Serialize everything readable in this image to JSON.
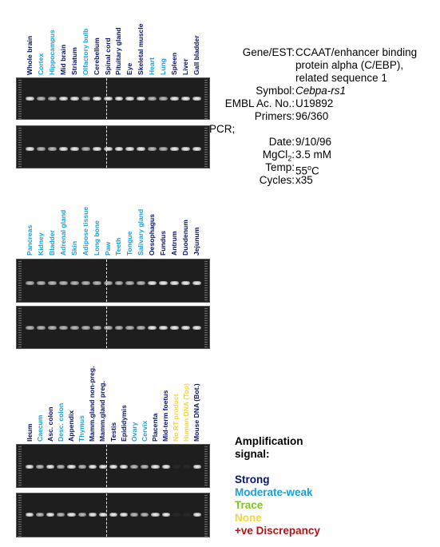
{
  "colors": {
    "strong": "#0a1466",
    "moderate": "#1aa0d8",
    "trace": "#7ec41e",
    "none": "#f2d540",
    "discrepancy": "#b01616"
  },
  "panels": [
    {
      "lanes": [
        {
          "label": "Whole brain",
          "level": "strong"
        },
        {
          "label": "Cortex",
          "level": "moderate"
        },
        {
          "label": "Hippocampus",
          "level": "moderate"
        },
        {
          "label": "Mid brain",
          "level": "strong"
        },
        {
          "label": "Striatum",
          "level": "strong"
        },
        {
          "label": "Olfactory bulb",
          "level": "moderate"
        },
        {
          "label": "Cerebellum",
          "level": "strong"
        },
        {
          "label": "Spinal cord",
          "level": "strong"
        },
        {
          "label": "Pituitary gland",
          "level": "strong"
        },
        {
          "label": "Eye",
          "level": "strong"
        },
        {
          "label": "Skeletal muscle",
          "level": "strong"
        },
        {
          "label": "Heart",
          "level": "moderate"
        },
        {
          "label": "Lung",
          "level": "moderate"
        },
        {
          "label": "Spleen",
          "level": "strong"
        },
        {
          "label": "Liver",
          "level": "strong"
        },
        {
          "label": "Gall bladder",
          "level": "strong"
        }
      ]
    },
    {
      "lanes": [
        {
          "label": "Pancreas",
          "level": "moderate"
        },
        {
          "label": "Kidney",
          "level": "moderate"
        },
        {
          "label": "Bladder",
          "level": "moderate"
        },
        {
          "label": "Adrenal gland",
          "level": "moderate"
        },
        {
          "label": "Skin",
          "level": "moderate"
        },
        {
          "label": "Adipose tissue",
          "level": "moderate"
        },
        {
          "label": "Long bone",
          "level": "moderate"
        },
        {
          "label": "Paw",
          "level": "moderate"
        },
        {
          "label": "Teeth",
          "level": "moderate"
        },
        {
          "label": "Tongue",
          "level": "moderate"
        },
        {
          "label": "Salivary gland",
          "level": "moderate"
        },
        {
          "label": "Oesophagus",
          "level": "strong"
        },
        {
          "label": "Fundus",
          "level": "strong"
        },
        {
          "label": "Antrum",
          "level": "strong"
        },
        {
          "label": "Duodenum",
          "level": "strong"
        },
        {
          "label": "Jejunum",
          "level": "strong"
        }
      ]
    },
    {
      "lanes": [
        {
          "label": "Ileum",
          "level": "strong"
        },
        {
          "label": "Caecum",
          "level": "moderate"
        },
        {
          "label": "Asc. colon",
          "level": "strong"
        },
        {
          "label": "Desc. colon",
          "level": "moderate"
        },
        {
          "label": "Appendix",
          "level": "strong"
        },
        {
          "label": "Thymus",
          "level": "moderate"
        },
        {
          "label": "Mamm.gland non-preg.",
          "level": "strong"
        },
        {
          "label": "Mamm.gland preg.",
          "level": "strong"
        },
        {
          "label": "Testis",
          "level": "strong"
        },
        {
          "label": "Epididymis",
          "level": "strong"
        },
        {
          "label": "Ovary",
          "level": "moderate"
        },
        {
          "label": "Cervix",
          "level": "moderate"
        },
        {
          "label": "Placenta",
          "level": "strong"
        },
        {
          "label": "Mid-term foetus",
          "level": "strong"
        },
        {
          "label": "No RT product",
          "level": "none"
        },
        {
          "label": "Human DNA (Top)",
          "level": "none"
        },
        {
          "label": "Mouse DNA (Bot.)",
          "level": "strong"
        }
      ]
    }
  ],
  "gene_info": {
    "gene_key": "Gene/EST:",
    "gene_value": "CCAAT/enhancer binding protein alpha (C/EBP), related sequence 1",
    "symbol_key": "Symbol:",
    "symbol_value": "Cebpa-rs1",
    "embl_key": "EMBL Ac. No.:",
    "embl_value": "U19892",
    "primers_key": "Primers:",
    "primers_value": "96/360",
    "pcr_label": "PCR;",
    "date_key": "Date:",
    "date_value": "9/10/96",
    "mgcl2_key_prefix": "MgCl",
    "mgcl2_key_sub": "2",
    "mgcl2_key_suffix": ":",
    "mgcl2_value": "3.5 mM",
    "temp_key": "Temp:",
    "temp_value_number": "55",
    "temp_value_sup": "o",
    "temp_value_unit": "C",
    "cycles_key": "Cycles:",
    "cycles_value": "x35"
  },
  "legend": {
    "title": "Amplification signal:",
    "strong": "Strong",
    "moderate": "Moderate-weak",
    "trace": "Trace",
    "none": "None",
    "discrepancy": "+ve Discrepancy"
  }
}
